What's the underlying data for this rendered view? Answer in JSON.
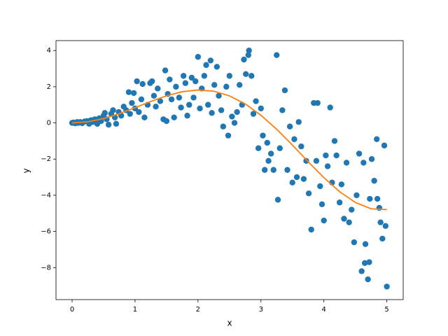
{
  "chart_data": {
    "type": "scatter",
    "xlabel": "x",
    "ylabel": "y",
    "xlim": [
      -0.256,
      5.26
    ],
    "ylim": [
      -9.77,
      4.55
    ],
    "xticks": [
      0,
      1,
      2,
      3,
      4,
      5
    ],
    "yticks": [
      {
        "value": -8,
        "label": "−8"
      },
      {
        "value": -6,
        "label": "−6"
      },
      {
        "value": -4,
        "label": "−4"
      },
      {
        "value": -2,
        "label": "−2"
      },
      0,
      2,
      4
    ],
    "grid": false,
    "series": [
      {
        "type": "scatter",
        "color": "#1f77b4",
        "x": [
          0,
          0.02,
          0.05,
          0.08,
          0.1,
          0.13,
          0.16,
          0.2,
          0.24,
          0.27,
          0.3,
          0.33,
          0.36,
          0.4,
          0.43,
          0.46,
          0.5,
          0.52,
          0.55,
          0.58,
          0.62,
          0.65,
          0.68,
          0.7,
          0.74,
          0.78,
          0.82,
          0.86,
          0.9,
          0.92,
          0.95,
          0.98,
          1.0,
          1.03,
          1.06,
          1.1,
          1.12,
          1.15,
          1.2,
          1.24,
          1.27,
          1.3,
          1.33,
          1.36,
          1.4,
          1.45,
          1.48,
          1.5,
          1.52,
          1.55,
          1.58,
          1.62,
          1.65,
          1.7,
          1.73,
          1.77,
          1.8,
          1.83,
          1.86,
          1.9,
          1.93,
          1.96,
          2.0,
          2.03,
          2.06,
          2.1,
          2.13,
          2.16,
          2.2,
          2.22,
          2.26,
          2.3,
          2.33,
          2.37,
          2.4,
          2.45,
          2.48,
          2.5,
          2.54,
          2.58,
          2.62,
          2.66,
          2.7,
          2.73,
          2.76,
          2.8,
          2.81,
          2.85,
          2.88,
          2.92,
          2.96,
          3.0,
          3.03,
          3.06,
          3.1,
          3.12,
          3.16,
          3.2,
          3.25,
          3.27,
          3.3,
          3.34,
          3.38,
          3.42,
          3.46,
          3.5,
          3.53,
          3.57,
          3.6,
          3.64,
          3.68,
          3.72,
          3.76,
          3.8,
          3.84,
          3.88,
          3.9,
          3.94,
          3.97,
          4.0,
          4.03,
          4.06,
          4.1,
          4.13,
          4.17,
          4.2,
          4.25,
          4.28,
          4.32,
          4.36,
          4.4,
          4.44,
          4.48,
          4.52,
          4.56,
          4.6,
          4.63,
          4.66,
          4.7,
          4.73,
          4.76,
          4.8,
          4.84,
          4.88,
          4.9,
          4.93,
          4.96,
          4.98,
          5.0,
          4.65,
          4.72,
          4.85
        ],
        "values": [
          0,
          0.02,
          -0.03,
          0.05,
          0,
          0.05,
          -0.02,
          0.08,
          0.1,
          -0.05,
          0.15,
          0.05,
          0.2,
          -0.05,
          0.25,
          0.1,
          0.4,
          0.55,
          0.2,
          -0.1,
          0.5,
          0.7,
          0.3,
          -0.05,
          0.6,
          0.4,
          0.9,
          0.7,
          1.7,
          0.5,
          1.1,
          1.65,
          0.8,
          2.3,
          0.6,
          1.3,
          2.15,
          0.3,
          1.0,
          2.2,
          2.3,
          1.5,
          0.9,
          1.9,
          1.2,
          0.2,
          2.9,
          0.1,
          1.6,
          2.4,
          1.3,
          0.3,
          2.0,
          1.4,
          0.85,
          2.6,
          2.2,
          0.4,
          1.0,
          2.5,
          1.4,
          2.3,
          3.65,
          0.8,
          1.9,
          2.6,
          3.2,
          1.0,
          3.45,
          0.55,
          2.1,
          3.1,
          1.5,
          0.7,
          -0.2,
          2.0,
          -0.7,
          2.6,
          0.35,
          0.0,
          0.6,
          2.1,
          1.0,
          3.5,
          2.7,
          3.75,
          4.0,
          2.6,
          0.5,
          1.2,
          -1.4,
          0.8,
          -0.7,
          -2.6,
          -1.1,
          -2.1,
          -1.7,
          -2.6,
          3.75,
          -4.25,
          -1.4,
          0.7,
          1.8,
          -2.6,
          -0.2,
          -3.3,
          -0.9,
          -3.0,
          0.05,
          -1.3,
          -3.1,
          -2.1,
          -3.9,
          -5.9,
          1.1,
          -2.1,
          1.1,
          -3.5,
          -4.5,
          -5.4,
          -1.8,
          -2.4,
          0.85,
          -3.3,
          -1.0,
          -1.8,
          -4.4,
          -3.4,
          -5.3,
          -2.2,
          -5.5,
          -4.8,
          -6.6,
          -4.0,
          -1.7,
          -8.2,
          -2.2,
          -6.7,
          -8.65,
          -4.2,
          -2.0,
          -3.2,
          -0.9,
          -4.7,
          -5.5,
          -6.4,
          -1.25,
          -5.7,
          -9.05,
          -7.75,
          -7.7,
          -4.2
        ]
      },
      {
        "type": "line",
        "color": "#ff7f0e",
        "x": [
          0,
          0.25,
          0.5,
          0.75,
          1,
          1.25,
          1.5,
          1.75,
          2,
          2.25,
          2.5,
          2.75,
          3,
          3.25,
          3.5,
          3.75,
          4,
          4.25,
          4.5,
          4.75,
          5
        ],
        "values": [
          0,
          0.062,
          0.24,
          0.511,
          0.841,
          1.186,
          1.496,
          1.722,
          1.819,
          1.751,
          1.496,
          1.05,
          0.423,
          -0.352,
          -1.228,
          -2.144,
          -3.027,
          -3.804,
          -4.399,
          -4.747,
          -4.795
        ]
      }
    ]
  }
}
